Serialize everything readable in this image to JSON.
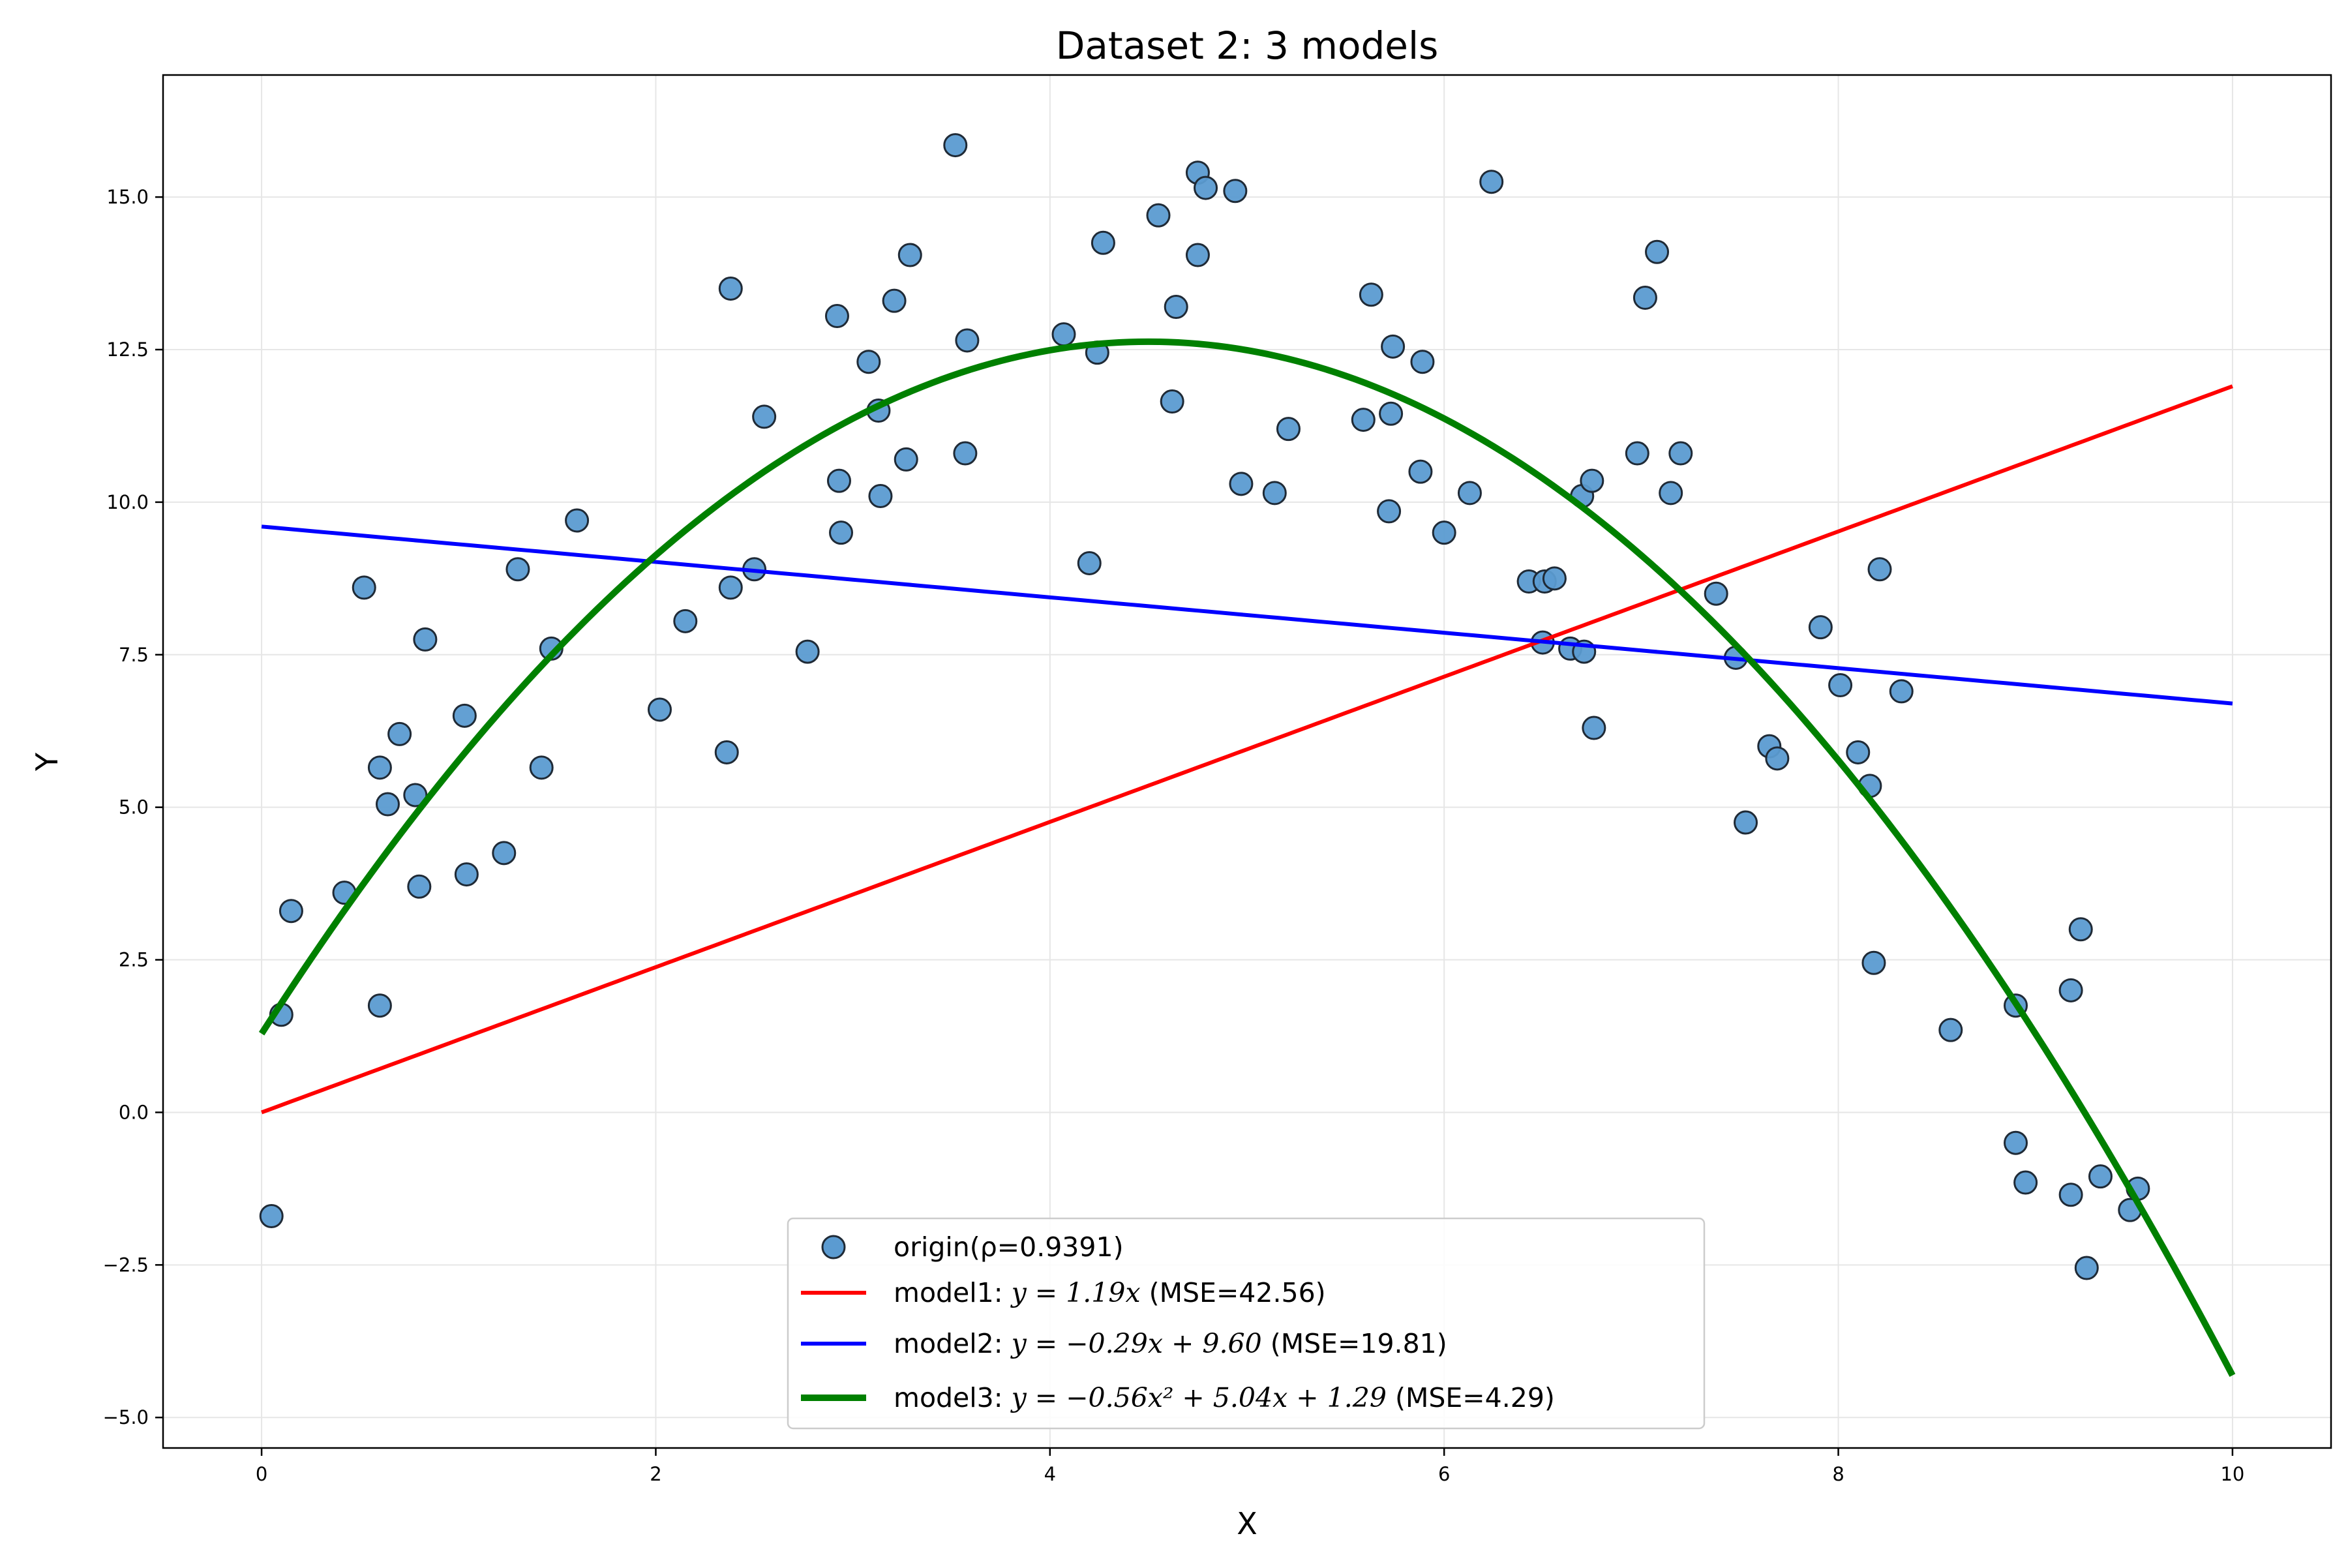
{
  "chart_data": {
    "type": "scatter",
    "title": "Dataset 2: 3 models",
    "xlabel": "X",
    "ylabel": "Y",
    "xlim": [
      -0.5,
      10.5
    ],
    "ylim": [
      -5.5,
      17.0
    ],
    "xticks": [
      0,
      2,
      4,
      6,
      8,
      10
    ],
    "xtick_labels": [
      "0",
      "2",
      "4",
      "6",
      "8",
      "10"
    ],
    "yticks": [
      -5.0,
      -2.5,
      0.0,
      2.5,
      5.0,
      7.5,
      10.0,
      12.5,
      15.0
    ],
    "ytick_labels": [
      "−5.0",
      "−2.5",
      "0.0",
      "2.5",
      "5.0",
      "7.5",
      "10.0",
      "12.5",
      "15.0"
    ],
    "grid": true,
    "legend_position": "bottom-center",
    "scatter": {
      "name": "origin(ρ=0.9391)",
      "color": "#5b9bd1",
      "edge_color": "#1f2a36",
      "points": [
        [
          0.05,
          -1.7
        ],
        [
          0.1,
          1.6
        ],
        [
          0.15,
          3.3
        ],
        [
          0.42,
          3.6
        ],
        [
          0.52,
          8.6
        ],
        [
          0.6,
          5.65
        ],
        [
          0.6,
          1.75
        ],
        [
          0.64,
          5.05
        ],
        [
          0.7,
          6.2
        ],
        [
          0.78,
          5.2
        ],
        [
          0.8,
          3.7
        ],
        [
          0.83,
          7.75
        ],
        [
          1.03,
          6.5
        ],
        [
          1.04,
          3.9
        ],
        [
          1.23,
          4.25
        ],
        [
          1.3,
          8.9
        ],
        [
          1.42,
          5.65
        ],
        [
          1.47,
          7.6
        ],
        [
          1.6,
          9.7
        ],
        [
          2.02,
          6.6
        ],
        [
          2.15,
          8.05
        ],
        [
          2.36,
          5.9
        ],
        [
          2.38,
          13.5
        ],
        [
          2.38,
          8.6
        ],
        [
          2.5,
          8.9
        ],
        [
          2.55,
          11.4
        ],
        [
          2.77,
          7.55
        ],
        [
          2.92,
          13.05
        ],
        [
          2.93,
          10.35
        ],
        [
          2.94,
          9.5
        ],
        [
          3.08,
          12.3
        ],
        [
          3.13,
          11.5
        ],
        [
          3.14,
          10.1
        ],
        [
          3.21,
          13.3
        ],
        [
          3.27,
          10.7
        ],
        [
          3.29,
          14.05
        ],
        [
          3.52,
          15.85
        ],
        [
          3.57,
          10.8
        ],
        [
          3.58,
          12.65
        ],
        [
          4.07,
          12.75
        ],
        [
          4.2,
          9.0
        ],
        [
          4.24,
          12.45
        ],
        [
          4.27,
          14.25
        ],
        [
          4.55,
          14.7
        ],
        [
          4.62,
          11.65
        ],
        [
          4.64,
          13.2
        ],
        [
          4.75,
          15.4
        ],
        [
          4.75,
          14.05
        ],
        [
          4.79,
          15.15
        ],
        [
          4.94,
          15.1
        ],
        [
          4.97,
          10.3
        ],
        [
          5.14,
          10.15
        ],
        [
          5.21,
          11.2
        ],
        [
          5.59,
          11.35
        ],
        [
          5.63,
          13.4
        ],
        [
          5.72,
          9.85
        ],
        [
          5.73,
          11.45
        ],
        [
          5.74,
          12.55
        ],
        [
          5.88,
          10.5
        ],
        [
          5.89,
          12.3
        ],
        [
          6.0,
          9.5
        ],
        [
          6.13,
          10.15
        ],
        [
          6.24,
          15.25
        ],
        [
          6.43,
          8.7
        ],
        [
          6.5,
          7.7
        ],
        [
          6.51,
          8.7
        ],
        [
          6.56,
          8.75
        ],
        [
          6.64,
          7.6
        ],
        [
          6.7,
          10.1
        ],
        [
          6.71,
          7.55
        ],
        [
          6.75,
          10.35
        ],
        [
          6.76,
          6.3
        ],
        [
          6.98,
          10.8
        ],
        [
          7.02,
          13.35
        ],
        [
          7.08,
          14.1
        ],
        [
          7.15,
          10.15
        ],
        [
          7.2,
          10.8
        ],
        [
          7.38,
          8.5
        ],
        [
          7.48,
          7.45
        ],
        [
          7.53,
          4.75
        ],
        [
          7.65,
          6.0
        ],
        [
          7.69,
          5.8
        ],
        [
          7.91,
          7.95
        ],
        [
          8.01,
          7.0
        ],
        [
          8.1,
          5.9
        ],
        [
          8.16,
          5.35
        ],
        [
          8.18,
          2.45
        ],
        [
          8.21,
          8.9
        ],
        [
          8.32,
          6.9
        ],
        [
          8.57,
          1.35
        ],
        [
          8.9,
          1.75
        ],
        [
          8.9,
          -0.5
        ],
        [
          8.95,
          -1.15
        ],
        [
          9.18,
          2.0
        ],
        [
          9.18,
          -1.35
        ],
        [
          9.23,
          3.0
        ],
        [
          9.26,
          -2.55
        ],
        [
          9.33,
          -1.05
        ],
        [
          9.48,
          -1.6
        ],
        [
          9.52,
          -1.25
        ]
      ]
    },
    "series": [
      {
        "name": "model1: y = 1.19x (MSE=42.56)",
        "legend_prefix": "model1: ",
        "legend_formula": "y = 1.19x",
        "legend_suffix": " (MSE=42.56)",
        "color": "#ff0000",
        "kind": "poly",
        "coefficients": [
          0,
          1.19,
          0
        ],
        "x_range": [
          0,
          10
        ]
      },
      {
        "name": "model2: y = −0.29x + 9.60 (MSE=19.81)",
        "legend_prefix": "model2: ",
        "legend_formula": "y = −0.29x + 9.60",
        "legend_suffix": " (MSE=19.81)",
        "color": "#0000ff",
        "kind": "poly",
        "coefficients": [
          0,
          -0.29,
          9.6
        ],
        "x_range": [
          0,
          10
        ]
      },
      {
        "name": "model3: y = −0.56x² + 5.04x + 1.29 (MSE=4.29)",
        "legend_prefix": "model3: ",
        "legend_formula": "y = −0.56x² + 5.04x + 1.29",
        "legend_suffix": " (MSE=4.29)",
        "color": "#008000",
        "kind": "poly",
        "coefficients": [
          -0.56,
          5.04,
          1.29
        ],
        "x_range": [
          0,
          10
        ]
      }
    ]
  }
}
